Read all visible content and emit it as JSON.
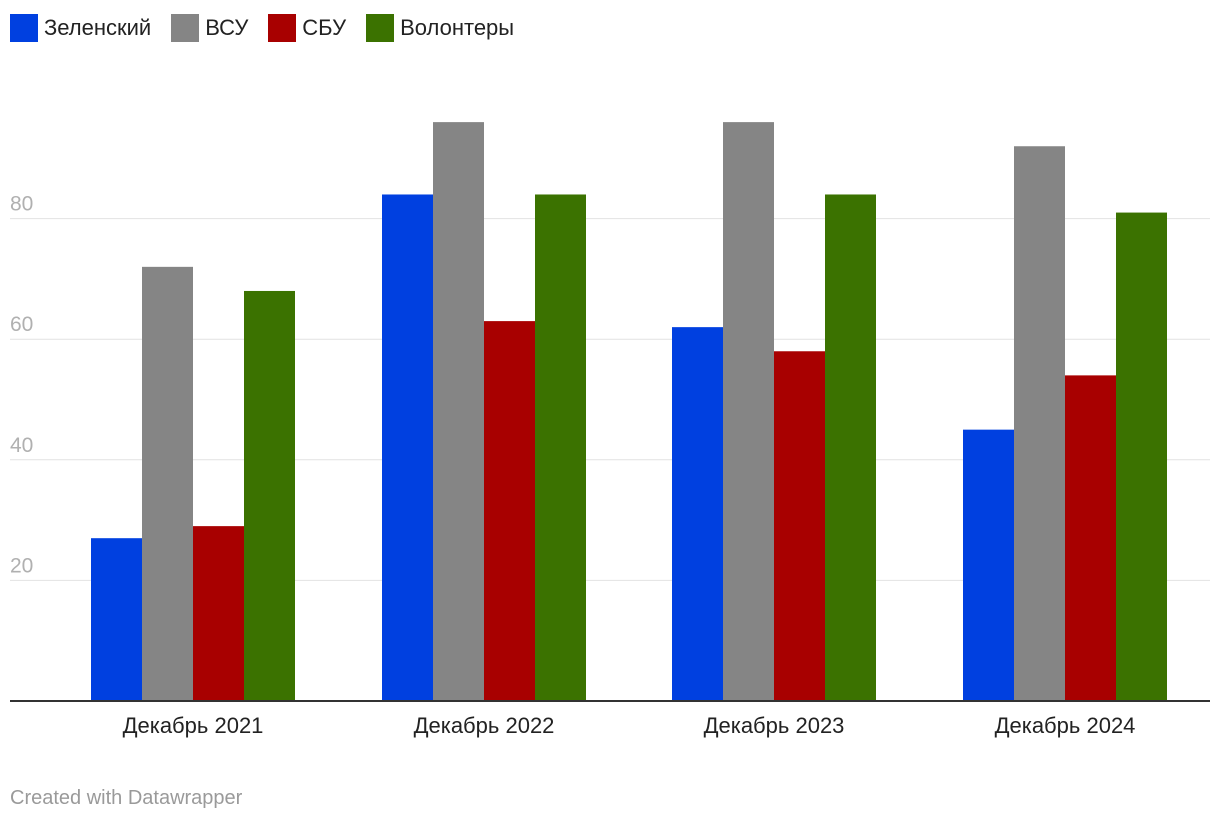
{
  "chart_data": {
    "type": "bar",
    "title": "",
    "xlabel": "",
    "ylabel": "",
    "ylim": [
      0,
      100
    ],
    "yticks": [
      20,
      40,
      60,
      80
    ],
    "grid": true,
    "legend_position": "top-left",
    "categories": [
      "Декабрь 2021",
      "Декабрь 2022",
      "Декабрь 2023",
      "Декабрь 2024"
    ],
    "series": [
      {
        "name": "Зеленский",
        "color": "#0040e0",
        "values": [
          27,
          84,
          62,
          45
        ]
      },
      {
        "name": "ВСУ",
        "color": "#858585",
        "values": [
          72,
          96,
          96,
          92
        ]
      },
      {
        "name": "СБУ",
        "color": "#a80000",
        "values": [
          29,
          63,
          58,
          54
        ]
      },
      {
        "name": "Волонтеры",
        "color": "#3b7200",
        "values": [
          68,
          84,
          84,
          81
        ]
      }
    ]
  },
  "footer": {
    "credit": "Created with Datawrapper"
  }
}
